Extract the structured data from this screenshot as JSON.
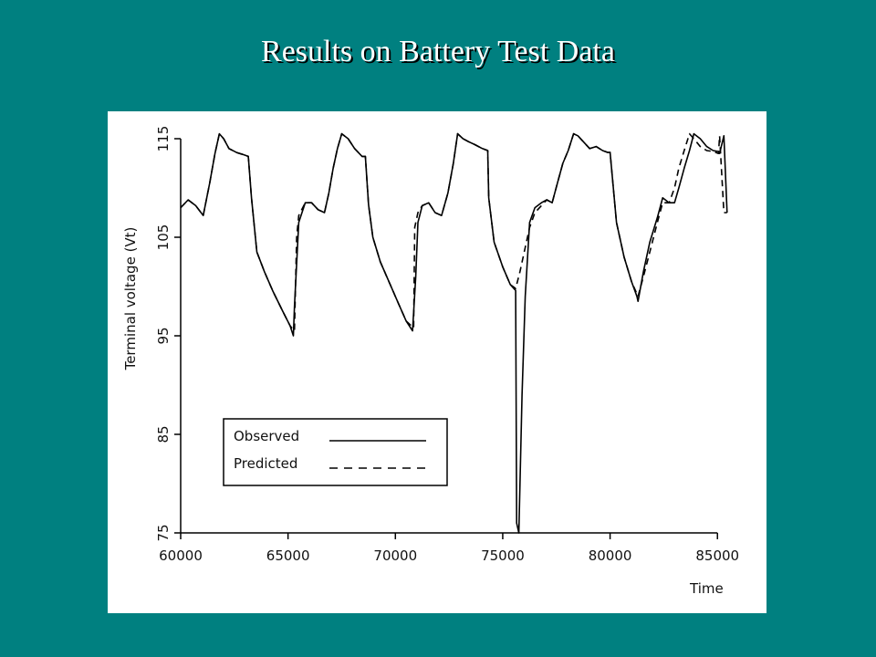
{
  "slide": {
    "title": "Results on Battery Test Data",
    "background_color": "#008080",
    "title_color": "#ffffff"
  },
  "chart_data": {
    "type": "line",
    "title": "",
    "xlabel": "Time",
    "ylabel": "Terminal voltage (Vt)",
    "xlim": [
      60000,
      85500
    ],
    "ylim": [
      75,
      115
    ],
    "xticks": [
      60000,
      65000,
      70000,
      75000,
      80000,
      85000
    ],
    "yticks": [
      75,
      85,
      95,
      105,
      115
    ],
    "grid": false,
    "legend_position": "bottom-left",
    "series": [
      {
        "name": "Observed",
        "style": "solid",
        "color": "#000000",
        "x": [
          60000,
          60350,
          60700,
          61050,
          61350,
          61600,
          61800,
          62000,
          62250,
          62600,
          62900,
          63150,
          63300,
          63550,
          63900,
          64300,
          64750,
          65100,
          65250,
          65300,
          65500,
          65800,
          66100,
          66400,
          66700,
          66900,
          67100,
          67300,
          67500,
          67800,
          68100,
          68450,
          68600,
          68750,
          68950,
          69300,
          69700,
          70100,
          70500,
          70800,
          70950,
          71050,
          71250,
          71550,
          71850,
          72150,
          72450,
          72700,
          72900,
          73150,
          73400,
          73700,
          74050,
          74300,
          74350,
          74600,
          75000,
          75350,
          75600,
          75650,
          75750,
          75900,
          76050,
          76250,
          76500,
          76800,
          77050,
          77300,
          77550,
          77800,
          78050,
          78300,
          78500,
          78750,
          79050,
          79350,
          79650,
          79900,
          80000,
          80300,
          80650,
          81000,
          81250,
          81300,
          81550,
          81850,
          82200,
          82450,
          82750,
          83000,
          83200,
          83450,
          83700,
          83900,
          84200,
          84500,
          84800,
          85050,
          85100,
          85300,
          85450
        ],
        "y": [
          108,
          108.8,
          108.2,
          107.2,
          110.5,
          113.5,
          115.5,
          115,
          114,
          113.6,
          113.4,
          113.2,
          109,
          103.5,
          101.5,
          99.5,
          97.5,
          96,
          95,
          98,
          106.5,
          108.5,
          108.5,
          107.8,
          107.5,
          109.5,
          112,
          114,
          115.5,
          115,
          114,
          113.2,
          113.2,
          108.3,
          105,
          102.5,
          100.5,
          98.5,
          96.5,
          95.5,
          101,
          106.5,
          108.2,
          108.5,
          107.5,
          107.2,
          109.5,
          112.5,
          115.5,
          115,
          114.7,
          114.4,
          114,
          113.8,
          109,
          104.5,
          102,
          100.2,
          99.6,
          76,
          75,
          89,
          99,
          106.5,
          108,
          108.5,
          108.8,
          108.5,
          110.5,
          112.5,
          113.8,
          115.5,
          115.3,
          114.7,
          114,
          114.2,
          113.8,
          113.6,
          113.6,
          106.5,
          103,
          100.5,
          99,
          98.5,
          101.5,
          104.5,
          107,
          109,
          108.5,
          108.5,
          110,
          112,
          113.8,
          115.5,
          115,
          114.2,
          113.8,
          113.7,
          113.5,
          115.3,
          107.5
        ]
      },
      {
        "name": "Predicted",
        "style": "dashed",
        "color": "#000000",
        "x": [
          60000,
          60350,
          60700,
          61050,
          61350,
          61600,
          61800,
          62000,
          62250,
          62600,
          62900,
          63150,
          63300,
          63550,
          63900,
          64300,
          64750,
          65100,
          65300,
          65400,
          65500,
          65800,
          66100,
          66400,
          66700,
          66900,
          67100,
          67300,
          67500,
          67800,
          68100,
          68450,
          68600,
          68750,
          68950,
          69300,
          69700,
          70100,
          70500,
          70850,
          70900,
          71050,
          71250,
          71550,
          71850,
          72150,
          72450,
          72700,
          72900,
          73150,
          73400,
          73700,
          74050,
          74300,
          74350,
          74600,
          75000,
          75350,
          75600,
          75800,
          76000,
          76250,
          76500,
          76800,
          77050,
          77300,
          77550,
          77800,
          78050,
          78300,
          78500,
          78750,
          79050,
          79350,
          79650,
          79900,
          80000,
          80300,
          80650,
          81000,
          81300,
          81550,
          81850,
          82200,
          82450,
          82750,
          83000,
          83200,
          83450,
          83700,
          83900,
          84200,
          84500,
          84800,
          85050,
          85100,
          85300,
          85450
        ],
        "y": [
          108,
          108.8,
          108.2,
          107.2,
          110.5,
          113.5,
          115.5,
          115,
          114,
          113.6,
          113.4,
          113.2,
          109,
          103.5,
          101.5,
          99.5,
          97.5,
          96,
          95.5,
          105,
          107.2,
          108.5,
          108.5,
          107.8,
          107.5,
          109.5,
          112,
          114,
          115.5,
          115,
          114,
          113.2,
          113.2,
          108.3,
          105,
          102.5,
          100.5,
          98.5,
          96.5,
          95.8,
          106,
          107.5,
          108.2,
          108.5,
          107.5,
          107.2,
          109.5,
          112.5,
          115.5,
          115,
          114.7,
          114.4,
          114,
          113.8,
          109,
          104.5,
          102,
          100.2,
          99.8,
          101.5,
          103.5,
          106,
          107.5,
          108.2,
          108.8,
          108.5,
          110.5,
          112.5,
          113.8,
          115.5,
          115.3,
          114.7,
          114,
          114.2,
          113.8,
          113.6,
          113.6,
          106.5,
          103,
          100.5,
          99,
          101,
          103.5,
          106.5,
          108.5,
          108.5,
          110,
          112,
          113.8,
          115.5,
          115,
          114.2,
          113.8,
          113.7,
          113.5,
          115.3,
          107.5,
          107.5
        ]
      }
    ]
  }
}
